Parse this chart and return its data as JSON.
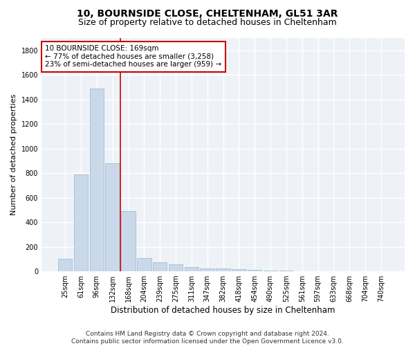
{
  "title1": "10, BOURNSIDE CLOSE, CHELTENHAM, GL51 3AR",
  "title2": "Size of property relative to detached houses in Cheltenham",
  "xlabel": "Distribution of detached houses by size in Cheltenham",
  "ylabel": "Number of detached properties",
  "footnote": "Contains HM Land Registry data © Crown copyright and database right 2024.\nContains public sector information licensed under the Open Government Licence v3.0.",
  "categories": [
    "25sqm",
    "61sqm",
    "96sqm",
    "132sqm",
    "168sqm",
    "204sqm",
    "239sqm",
    "275sqm",
    "311sqm",
    "347sqm",
    "382sqm",
    "418sqm",
    "454sqm",
    "490sqm",
    "525sqm",
    "561sqm",
    "597sqm",
    "633sqm",
    "668sqm",
    "704sqm",
    "740sqm"
  ],
  "values": [
    100,
    790,
    1490,
    880,
    490,
    105,
    75,
    55,
    35,
    25,
    25,
    20,
    10,
    5,
    5,
    2,
    2,
    1,
    1,
    0,
    0
  ],
  "bar_color": "#c9d9ea",
  "bar_edge_color": "#a0bdd4",
  "vline_index": 4,
  "vline_color": "#cc0000",
  "annotation_text": "10 BOURNSIDE CLOSE: 169sqm\n← 77% of detached houses are smaller (3,258)\n23% of semi-detached houses are larger (959) →",
  "annotation_box_color": "#cc0000",
  "ylim": [
    0,
    1900
  ],
  "yticks": [
    0,
    200,
    400,
    600,
    800,
    1000,
    1200,
    1400,
    1600,
    1800
  ],
  "background_color": "#eef2f7",
  "grid_color": "#ffffff",
  "title1_fontsize": 10,
  "title2_fontsize": 9,
  "annotation_fontsize": 7.5,
  "xlabel_fontsize": 8.5,
  "ylabel_fontsize": 8,
  "tick_fontsize": 7,
  "footnote_fontsize": 6.5
}
